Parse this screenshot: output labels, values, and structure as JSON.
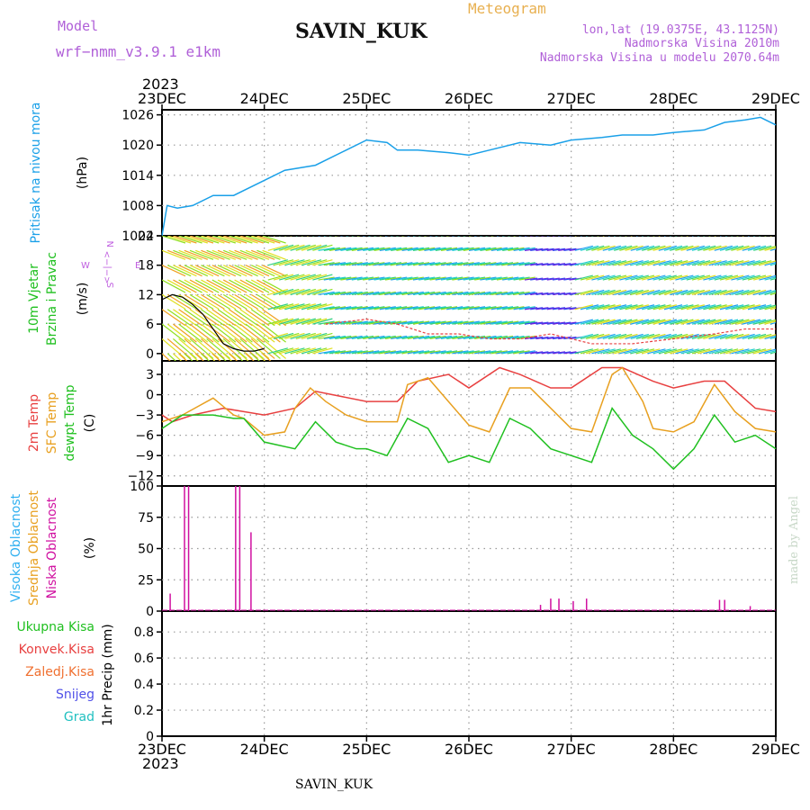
{
  "header": {
    "model_label": "Model",
    "model_name": "wrf−nmm_v3.9.1 e1km",
    "station": "SAVIN_KUK",
    "product": "Meteogram",
    "coords": "lon,lat (19.0375E, 43.1125N)",
    "elevation": "Nadmorska Visina 2010m",
    "model_elevation": "Nadmorska Visina u modelu 2070.64m",
    "year_top": "2023",
    "year_bottom": "2023",
    "footer_station": "SAVIN_KUK",
    "credit": "made by Angel"
  },
  "colors": {
    "pressure": "#1aa0e8",
    "temp2m": "#e84040",
    "sfc": "#e8a020",
    "dewpt": "#20c020",
    "cloud_high": "#30b0f0",
    "cloud_mid": "#e8a020",
    "cloud_low": "#d010a0",
    "wind_label": "#20c020",
    "rose": "#c060e0",
    "gust": "#e84040"
  },
  "chart_data": [
    {
      "type": "line",
      "name": "pressure",
      "ylabel_main": "Pritisak na nivou mora",
      "ylabel_unit": "(hPa)",
      "yticks": [
        "1026",
        "1020",
        "1014",
        "1008",
        "1002"
      ],
      "ylim": [
        1002,
        1027
      ],
      "x_days": [
        "23DEC",
        "24DEC",
        "25DEC",
        "26DEC",
        "27DEC",
        "28DEC",
        "29DEC"
      ],
      "x": [
        0,
        0.05,
        0.15,
        0.3,
        0.5,
        0.7,
        1.0,
        1.2,
        1.5,
        1.8,
        2.0,
        2.2,
        2.3,
        2.5,
        2.8,
        3.0,
        3.2,
        3.5,
        3.8,
        4.0,
        4.3,
        4.5,
        4.8,
        5.0,
        5.3,
        5.5,
        5.7,
        5.85,
        6.0
      ],
      "y": [
        1002,
        1008,
        1007.5,
        1008,
        1010,
        1010,
        1013,
        1015,
        1016,
        1019,
        1021,
        1020.5,
        1019,
        1019,
        1018.5,
        1018,
        1019,
        1020.5,
        1020,
        1021,
        1021.5,
        1022,
        1022,
        1022.5,
        1023,
        1024.5,
        1025,
        1025.5,
        1024
      ]
    },
    {
      "type": "wind",
      "ylabel_main": "10m Vjetar",
      "ylabel_sub": "Brzina i Pravac",
      "ylabel_unit": "(m/s)",
      "yticks": [
        "24",
        "18",
        "12",
        "6",
        "0"
      ],
      "ylim": [
        -1.5,
        24
      ],
      "rose": {
        "n": "N",
        "s": "S",
        "e": "E",
        "w": "W",
        "mid": "<−|−>"
      },
      "levels": [
        24,
        21,
        18,
        15,
        12,
        9,
        6,
        3,
        0
      ],
      "x": [
        0,
        0.1,
        0.2,
        0.3,
        0.4,
        0.5,
        0.6,
        0.7,
        0.8,
        0.9,
        1.0
      ],
      "speed": [
        11,
        12,
        11.5,
        10,
        8,
        5,
        2,
        1,
        0.5,
        0.5,
        1
      ],
      "speed_tail_x": [
        1.6,
        2.0,
        2.3,
        2.6,
        2.9,
        3.2,
        3.5,
        3.8,
        4.2,
        4.6,
        5.0,
        5.4,
        5.7,
        6.0
      ],
      "speed_tail": [
        6,
        7,
        6,
        4,
        4,
        3,
        3,
        4,
        2,
        2,
        3,
        4,
        5,
        5
      ]
    },
    {
      "type": "line",
      "name": "temperature",
      "ylabel_lines": [
        "2m Temp",
        "SFC Temp",
        "dewpt Temp"
      ],
      "ylabel_unit": "(C)",
      "yticks": [
        "3",
        "0",
        "−3",
        "−6",
        "−9",
        "−12"
      ],
      "ylim": [
        -13.5,
        5
      ],
      "series": [
        {
          "name": "2m Temp",
          "x": [
            0,
            0.1,
            0.3,
            0.6,
            0.8,
            1.0,
            1.3,
            1.5,
            2.0,
            2.3,
            2.5,
            2.8,
            3.0,
            3.3,
            3.5,
            3.8,
            4.0,
            4.3,
            4.5,
            4.8,
            5.0,
            5.3,
            5.5,
            5.8,
            6.0
          ],
          "y": [
            -3,
            -4,
            -3,
            -2,
            -2.5,
            -3,
            -2,
            0.5,
            -1,
            -1,
            2,
            3,
            1,
            4,
            3,
            1,
            1,
            4,
            4,
            2,
            1,
            2,
            2,
            -2,
            -2.5
          ]
        },
        {
          "name": "SFC Temp",
          "x": [
            0,
            0.2,
            0.5,
            0.7,
            0.8,
            1.0,
            1.2,
            1.3,
            1.45,
            1.6,
            1.8,
            2.0,
            2.3,
            2.4,
            2.6,
            2.8,
            3.0,
            3.2,
            3.4,
            3.6,
            3.8,
            4.0,
            4.2,
            4.4,
            4.5,
            4.7,
            4.8,
            5.0,
            5.2,
            5.4,
            5.6,
            5.8,
            6.0
          ],
          "y": [
            -4,
            -3,
            -0.5,
            -3,
            -3.5,
            -6,
            -5.5,
            -2,
            1,
            -1,
            -3,
            -4,
            -4,
            1.5,
            2.5,
            -1,
            -4.5,
            -5.5,
            1,
            1,
            -2,
            -5,
            -5.5,
            3,
            4,
            -1,
            -5,
            -5.5,
            -4,
            1.5,
            -2.5,
            -5,
            -5.5
          ]
        },
        {
          "name": "dewpt Temp",
          "x": [
            0,
            0.2,
            0.5,
            0.7,
            0.8,
            1.0,
            1.3,
            1.5,
            1.7,
            1.9,
            2.0,
            2.2,
            2.4,
            2.6,
            2.8,
            3.0,
            3.2,
            3.4,
            3.6,
            3.8,
            4.0,
            4.2,
            4.4,
            4.6,
            4.8,
            5.0,
            5.2,
            5.4,
            5.6,
            5.8,
            6.0
          ],
          "y": [
            -5,
            -3,
            -3,
            -3.5,
            -3.5,
            -7,
            -8,
            -4,
            -7,
            -8,
            -8,
            -9,
            -3.5,
            -5,
            -10,
            -9,
            -10,
            -3.5,
            -5,
            -8,
            -9,
            -10,
            -2,
            -6,
            -8,
            -11,
            -8,
            -3,
            -7,
            -6,
            -8
          ]
        }
      ]
    },
    {
      "type": "bar",
      "name": "clouds",
      "ylabel_lines": [
        "Visoka Oblacnost",
        "Srednja Oblacnost",
        "Niska Oblacnost"
      ],
      "ylabel_unit": "(%)",
      "yticks": [
        "100",
        "75",
        "50",
        "25",
        "0"
      ],
      "ylim": [
        0,
        100
      ],
      "x": [
        0.08,
        0.22,
        0.26,
        0.72,
        0.76,
        0.87,
        3.7,
        3.8,
        3.88,
        4.02,
        4.15,
        5.45,
        5.5,
        5.75
      ],
      "values": [
        14,
        100,
        100,
        100,
        100,
        63,
        5,
        10,
        10,
        8,
        10,
        9,
        9,
        4
      ]
    },
    {
      "type": "line",
      "name": "precip",
      "ylabel_lines": [
        "Ukupna Kisa",
        "Konvek.Kisa",
        "Zaledj.Kisa",
        "Snijeg",
        "Grad"
      ],
      "ylabel_unit": "1hr Precip (mm)",
      "yticks": [
        "0.8",
        "0.6",
        "0.4",
        "0.2",
        "0"
      ],
      "ylim": [
        0,
        0.96
      ],
      "values": []
    }
  ]
}
